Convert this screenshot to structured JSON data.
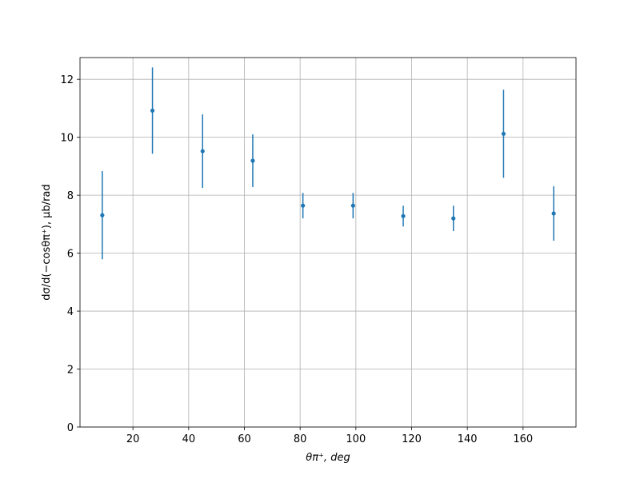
{
  "chart_data": {
    "type": "errorbar",
    "xlabel": "θπ⁺, deg",
    "ylabel": "dσ/d(−cosθπ⁺), μb/rad",
    "series": [
      {
        "color": "#1f77b4",
        "x": [
          9,
          27,
          45,
          63,
          81,
          99,
          117,
          135,
          153,
          171
        ],
        "values": [
          7.31,
          10.92,
          9.52,
          9.19,
          7.64,
          7.64,
          7.28,
          7.2,
          10.12,
          7.37
        ],
        "errors": [
          1.52,
          1.49,
          1.27,
          0.91,
          0.44,
          0.44,
          0.36,
          0.44,
          1.52,
          0.94
        ]
      }
    ],
    "xlim": [
      1,
      179
    ],
    "ylim": [
      0,
      12.75
    ],
    "xticks": [
      20,
      40,
      60,
      80,
      100,
      120,
      140,
      160
    ],
    "yticks": [
      0,
      2,
      4,
      6,
      8,
      10,
      12
    ],
    "grid": true
  }
}
